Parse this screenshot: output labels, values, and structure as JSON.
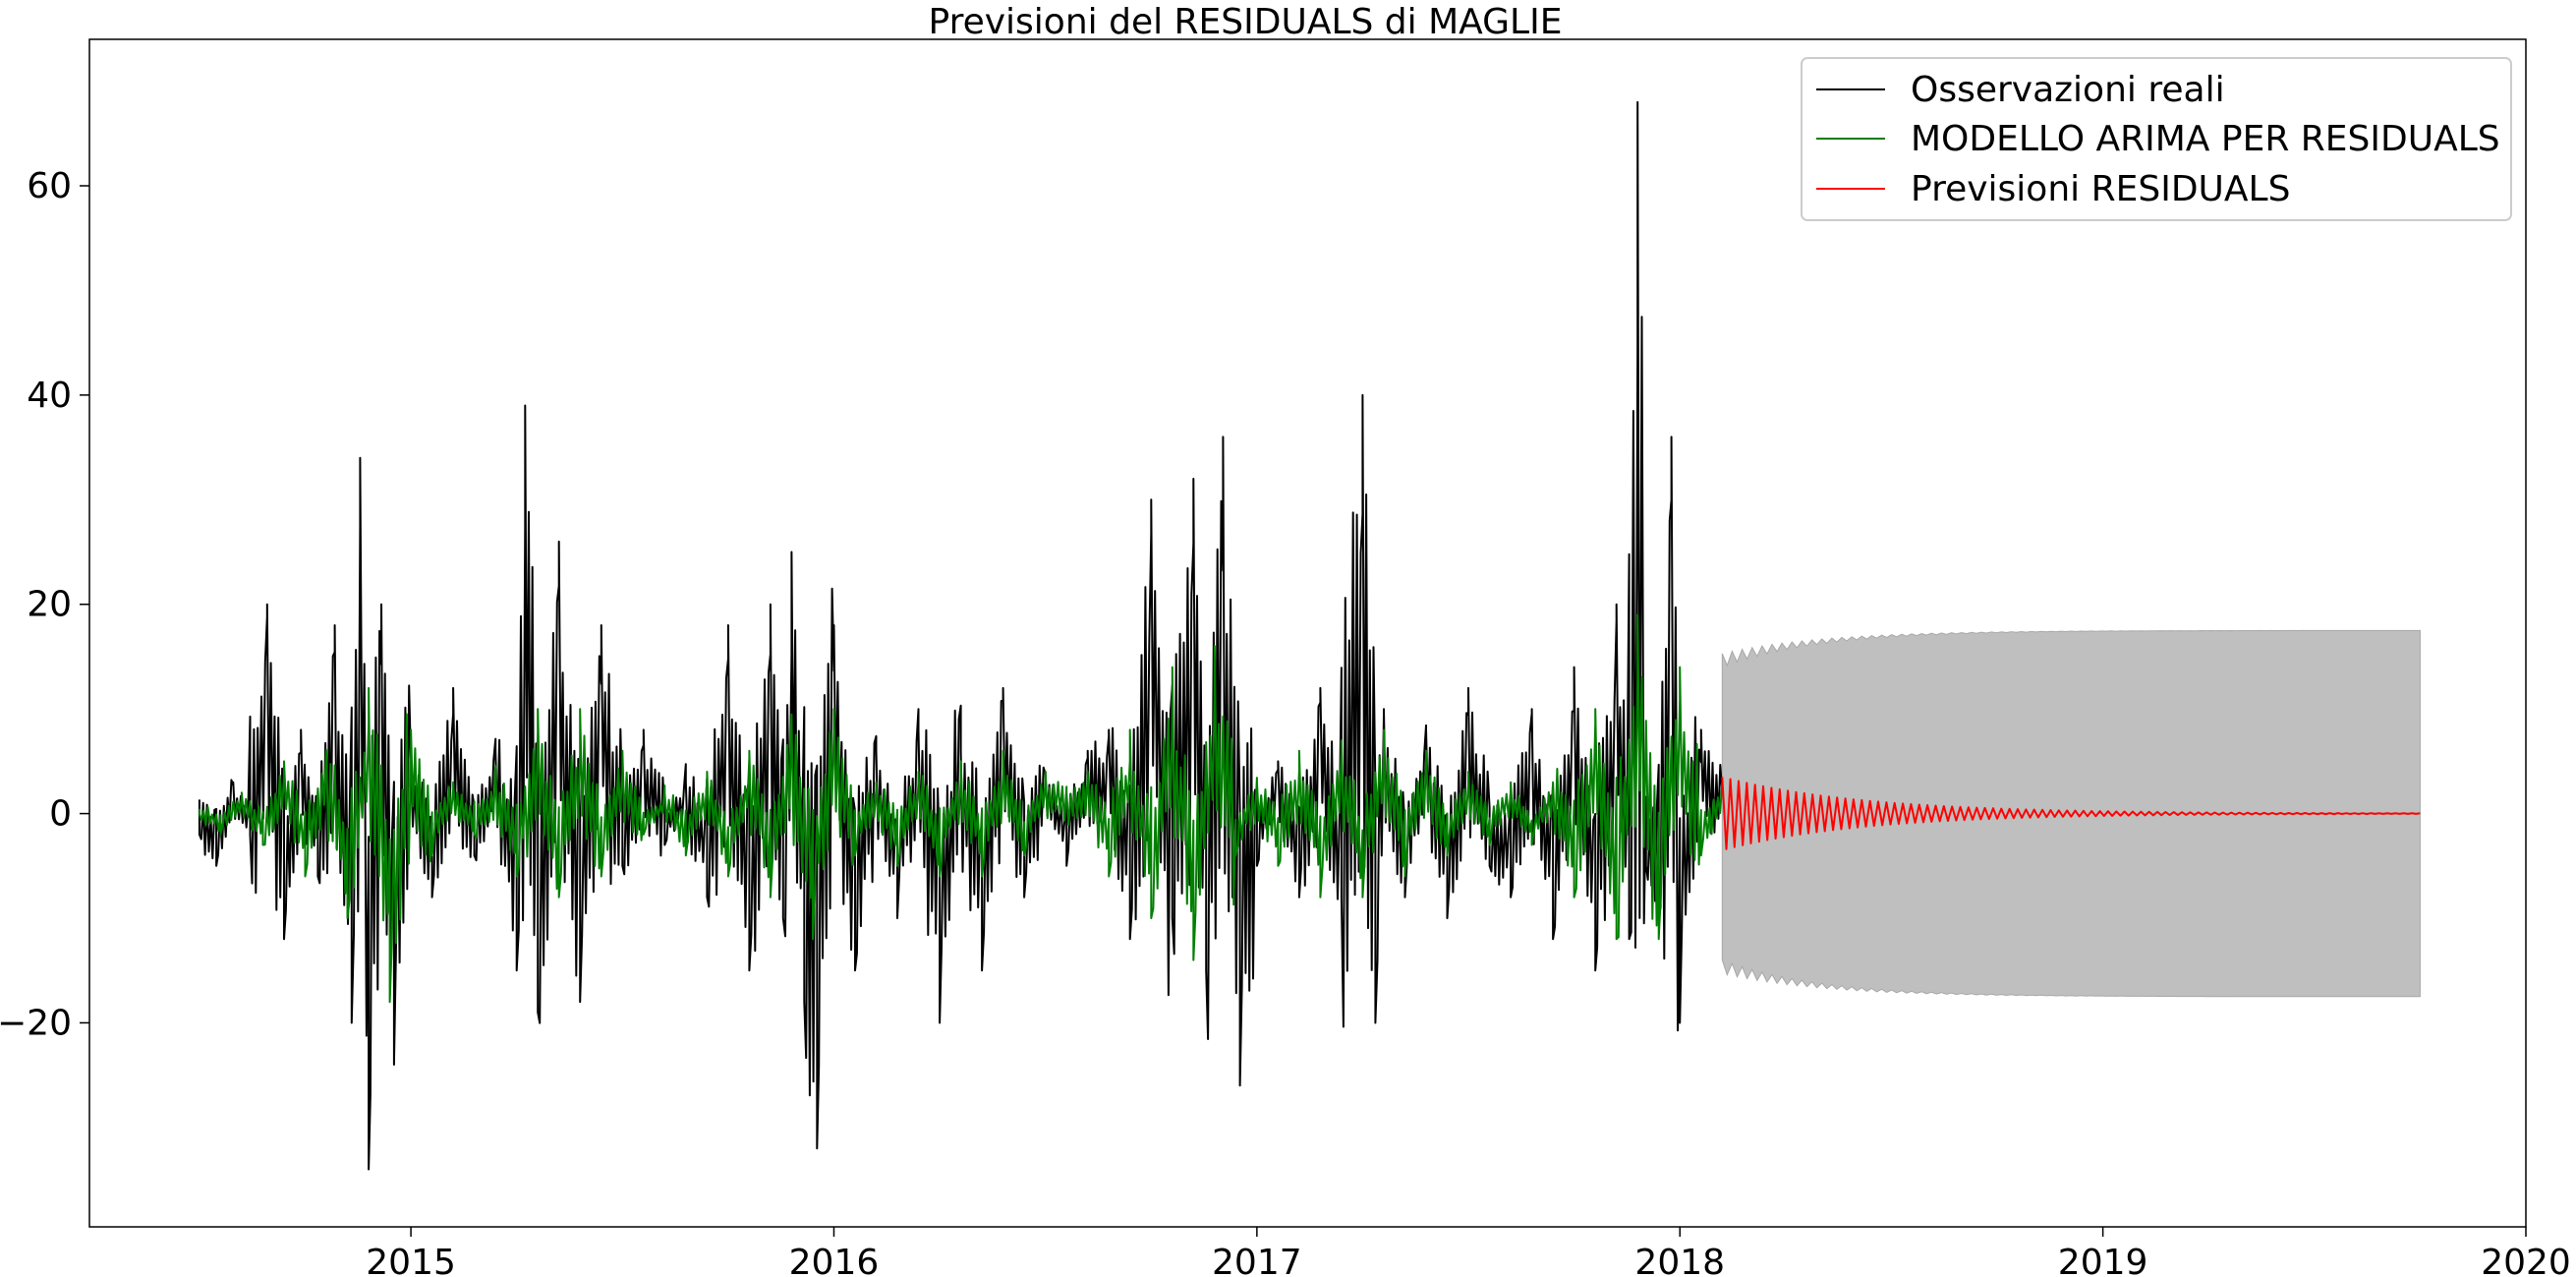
{
  "chart_data": {
    "type": "line",
    "title": "Previsioni del RESIDUALS di MAGLIE",
    "xlabel": "",
    "ylabel": "",
    "xlim": [
      2014.24,
      2020.0
    ],
    "ylim": [
      -39.5,
      74.0
    ],
    "x_ticks": [
      {
        "value": 2015,
        "label": "2015"
      },
      {
        "value": 2016,
        "label": "2016"
      },
      {
        "value": 2017,
        "label": "2017"
      },
      {
        "value": 2018,
        "label": "2018"
      },
      {
        "value": 2019,
        "label": "2019"
      },
      {
        "value": 2020,
        "label": "2020"
      }
    ],
    "y_ticks": [
      {
        "value": -20,
        "label": "−20"
      },
      {
        "value": 0,
        "label": "0"
      },
      {
        "value": 20,
        "label": "20"
      },
      {
        "value": 40,
        "label": "40"
      },
      {
        "value": 60,
        "label": "60"
      }
    ],
    "grid": false,
    "legend_position": "top-right",
    "series": [
      {
        "name": "Osservazioni reali",
        "color": "#000000",
        "kind": "line",
        "x": [
          2014.5,
          2014.54,
          2014.58,
          2014.62,
          2014.66,
          2014.7,
          2014.74,
          2014.78,
          2014.82,
          2014.86,
          2014.88,
          2014.9,
          2014.93,
          2014.96,
          2015.0,
          2015.05,
          2015.1,
          2015.15,
          2015.2,
          2015.25,
          2015.27,
          2015.3,
          2015.35,
          2015.4,
          2015.45,
          2015.5,
          2015.55,
          2015.6,
          2015.65,
          2015.7,
          2015.75,
          2015.8,
          2015.85,
          2015.88,
          2015.9,
          2015.93,
          2015.96,
          2016.0,
          2016.05,
          2016.1,
          2016.15,
          2016.2,
          2016.25,
          2016.3,
          2016.35,
          2016.4,
          2016.45,
          2016.5,
          2016.55,
          2016.6,
          2016.65,
          2016.7,
          2016.75,
          2016.8,
          2016.85,
          2016.88,
          2016.92,
          2016.96,
          2017.0,
          2017.05,
          2017.1,
          2017.15,
          2017.2,
          2017.25,
          2017.28,
          2017.3,
          2017.35,
          2017.4,
          2017.45,
          2017.5,
          2017.55,
          2017.6,
          2017.65,
          2017.7,
          2017.75,
          2017.8,
          2017.85,
          2017.88,
          2017.9,
          2017.92,
          2017.95,
          2017.98,
          2018.0,
          2018.05,
          2018.1
        ],
        "y": [
          -2,
          -5,
          3,
          -2,
          20,
          -12,
          8,
          -6,
          18,
          -20,
          34,
          -34,
          20,
          -24,
          5,
          -8,
          12,
          -4,
          6,
          -15,
          39,
          -19,
          26,
          -18,
          18,
          -5,
          8,
          -3,
          3,
          -8,
          18,
          -15,
          20,
          -10,
          25,
          -18,
          -32,
          18,
          -15,
          6,
          -10,
          8,
          -20,
          6,
          -15,
          12,
          -8,
          4,
          -5,
          6,
          8,
          -12,
          30,
          -10,
          32,
          -15,
          36,
          -26,
          -5,
          5,
          -8,
          12,
          -8,
          40,
          -20,
          10,
          -8,
          8,
          -10,
          12,
          -5,
          -8,
          10,
          -12,
          14,
          -15,
          20,
          -12,
          68,
          -5,
          -10,
          36,
          -20,
          8,
          2
        ],
        "sampled": true
      },
      {
        "name": "MODELLO ARIMA PER RESIDUALS",
        "color": "#008000",
        "kind": "line",
        "x": [
          2014.5,
          2014.55,
          2014.6,
          2014.65,
          2014.7,
          2014.75,
          2014.8,
          2014.85,
          2014.9,
          2014.95,
          2015.0,
          2015.05,
          2015.1,
          2015.15,
          2015.2,
          2015.25,
          2015.3,
          2015.35,
          2015.4,
          2015.45,
          2015.5,
          2015.55,
          2015.6,
          2015.65,
          2015.7,
          2015.75,
          2015.8,
          2015.85,
          2015.9,
          2015.95,
          2016.0,
          2016.05,
          2016.1,
          2016.15,
          2016.2,
          2016.25,
          2016.3,
          2016.35,
          2016.4,
          2016.45,
          2016.5,
          2016.55,
          2016.6,
          2016.65,
          2016.7,
          2016.75,
          2016.8,
          2016.85,
          2016.9,
          2016.95,
          2017.0,
          2017.05,
          2017.1,
          2017.15,
          2017.2,
          2017.25,
          2017.3,
          2017.35,
          2017.4,
          2017.45,
          2017.5,
          2017.55,
          2017.6,
          2017.65,
          2017.7,
          2017.75,
          2017.8,
          2017.85,
          2017.9,
          2017.95,
          2018.0,
          2018.05,
          2018.1
        ],
        "y": [
          0,
          -2,
          2,
          -3,
          5,
          -6,
          6,
          -10,
          12,
          -18,
          8,
          -4,
          3,
          -2,
          4,
          -6,
          10,
          -8,
          10,
          -6,
          6,
          -2,
          2,
          -4,
          4,
          -6,
          6,
          -8,
          9,
          -12,
          10,
          -4,
          3,
          -5,
          4,
          -6,
          5,
          -6,
          6,
          -4,
          4,
          2,
          4,
          -6,
          8,
          -10,
          14,
          -14,
          16,
          -4,
          3,
          -5,
          6,
          -8,
          7,
          -8,
          8,
          -6,
          6,
          -4,
          4,
          -3,
          3,
          -3,
          3,
          -8,
          10,
          -12,
          19,
          -12,
          14,
          -4,
          3
        ],
        "sampled": true
      },
      {
        "name": "Previsioni RESIDUALS",
        "color": "#ff0000",
        "kind": "damped_oscillation",
        "x_start": 2018.1,
        "x_end": 2019.75,
        "initial_amplitude": 3.5,
        "end_value": 0
      }
    ],
    "confidence_band": {
      "color": "#bfbfbf",
      "x_start": 2018.1,
      "x_end": 2019.75,
      "initial_half_width": 14.0,
      "steady_half_width": 17.5,
      "oscillation_peak": 18.8
    }
  }
}
